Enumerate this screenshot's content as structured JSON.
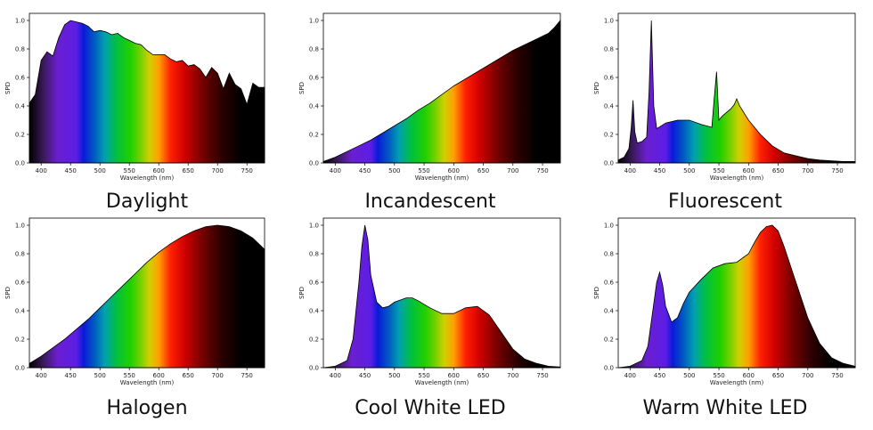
{
  "chart_data": [
    {
      "type": "area",
      "title": "Daylight",
      "xlabel": "Wavelength (nm)",
      "ylabel": "SPD",
      "xlim": [
        380,
        780
      ],
      "ylim": [
        0,
        1.05
      ],
      "xticks": [
        "400",
        "450",
        "500",
        "550",
        "600",
        "650",
        "700",
        "750"
      ],
      "yticks": [
        "0.0",
        "0.2",
        "0.4",
        "0.6",
        "0.8",
        "1.0"
      ],
      "x": [
        380,
        385,
        390,
        400,
        410,
        420,
        430,
        440,
        450,
        460,
        470,
        480,
        490,
        500,
        510,
        520,
        530,
        540,
        550,
        560,
        570,
        580,
        590,
        600,
        610,
        620,
        630,
        640,
        650,
        660,
        670,
        680,
        690,
        700,
        710,
        720,
        730,
        740,
        750,
        760,
        770,
        780
      ],
      "y": [
        0.42,
        0.45,
        0.48,
        0.72,
        0.78,
        0.75,
        0.88,
        0.97,
        1.0,
        0.99,
        0.98,
        0.96,
        0.92,
        0.93,
        0.92,
        0.9,
        0.91,
        0.88,
        0.86,
        0.84,
        0.83,
        0.79,
        0.76,
        0.76,
        0.76,
        0.73,
        0.71,
        0.72,
        0.68,
        0.69,
        0.66,
        0.6,
        0.67,
        0.63,
        0.52,
        0.63,
        0.55,
        0.52,
        0.41,
        0.56,
        0.53,
        0.53
      ]
    },
    {
      "type": "area",
      "title": "Incandescent",
      "xlabel": "Wavelength (nm)",
      "ylabel": "SPD",
      "xlim": [
        380,
        780
      ],
      "ylim": [
        0,
        1.05
      ],
      "xticks": [
        "400",
        "450",
        "500",
        "550",
        "600",
        "650",
        "700",
        "750"
      ],
      "yticks": [
        "0.0",
        "0.2",
        "0.4",
        "0.6",
        "0.8",
        "1.0"
      ],
      "x": [
        380,
        400,
        420,
        440,
        460,
        480,
        500,
        520,
        540,
        560,
        580,
        600,
        620,
        640,
        660,
        680,
        700,
        720,
        740,
        760,
        770,
        780
      ],
      "y": [
        0.01,
        0.04,
        0.08,
        0.12,
        0.16,
        0.21,
        0.26,
        0.31,
        0.37,
        0.42,
        0.48,
        0.54,
        0.59,
        0.64,
        0.69,
        0.74,
        0.79,
        0.83,
        0.87,
        0.91,
        0.95,
        1.0
      ]
    },
    {
      "type": "area",
      "title": "Fluorescent",
      "xlabel": "Wavelength (nm)",
      "ylabel": "SPD",
      "xlim": [
        380,
        780
      ],
      "ylim": [
        0,
        1.05
      ],
      "xticks": [
        "400",
        "450",
        "500",
        "550",
        "600",
        "650",
        "700",
        "750"
      ],
      "yticks": [
        "0.0",
        "0.2",
        "0.4",
        "0.6",
        "0.8",
        "1.0"
      ],
      "x": [
        380,
        390,
        398,
        402,
        405,
        408,
        412,
        420,
        428,
        432,
        436,
        440,
        445,
        460,
        480,
        500,
        520,
        538,
        542,
        546,
        550,
        556,
        570,
        576,
        580,
        585,
        600,
        620,
        640,
        660,
        680,
        700,
        720,
        740,
        760,
        780
      ],
      "y": [
        0.02,
        0.04,
        0.1,
        0.25,
        0.44,
        0.22,
        0.14,
        0.15,
        0.18,
        0.5,
        1.0,
        0.4,
        0.24,
        0.28,
        0.3,
        0.3,
        0.27,
        0.25,
        0.45,
        0.64,
        0.3,
        0.33,
        0.38,
        0.41,
        0.45,
        0.4,
        0.3,
        0.2,
        0.12,
        0.07,
        0.05,
        0.03,
        0.02,
        0.015,
        0.01,
        0.01
      ]
    },
    {
      "type": "area",
      "title": "Halogen",
      "xlabel": "Wavelength (nm)",
      "ylabel": "SPD",
      "xlim": [
        380,
        780
      ],
      "ylim": [
        0,
        1.05
      ],
      "xticks": [
        "400",
        "450",
        "500",
        "550",
        "600",
        "650",
        "700",
        "750"
      ],
      "yticks": [
        "0.0",
        "0.2",
        "0.4",
        "0.6",
        "0.8",
        "1.0"
      ],
      "x": [
        380,
        400,
        420,
        440,
        460,
        480,
        500,
        520,
        540,
        560,
        580,
        600,
        620,
        640,
        660,
        680,
        700,
        720,
        740,
        760,
        780
      ],
      "y": [
        0.03,
        0.08,
        0.14,
        0.2,
        0.27,
        0.34,
        0.42,
        0.5,
        0.58,
        0.66,
        0.74,
        0.81,
        0.87,
        0.92,
        0.96,
        0.99,
        1.0,
        0.99,
        0.96,
        0.91,
        0.83
      ]
    },
    {
      "type": "area",
      "title": "Cool White LED",
      "xlabel": "Wavelength (nm)",
      "ylabel": "SPD",
      "xlim": [
        380,
        780
      ],
      "ylim": [
        0,
        1.05
      ],
      "xticks": [
        "400",
        "450",
        "500",
        "550",
        "600",
        "650",
        "700",
        "750"
      ],
      "yticks": [
        "0.0",
        "0.2",
        "0.4",
        "0.6",
        "0.8",
        "1.0"
      ],
      "x": [
        380,
        400,
        420,
        430,
        440,
        445,
        450,
        455,
        460,
        470,
        480,
        490,
        500,
        520,
        530,
        540,
        560,
        580,
        600,
        620,
        640,
        660,
        680,
        700,
        720,
        740,
        760,
        780
      ],
      "y": [
        0.0,
        0.01,
        0.05,
        0.2,
        0.6,
        0.85,
        1.0,
        0.9,
        0.65,
        0.46,
        0.42,
        0.43,
        0.46,
        0.49,
        0.49,
        0.47,
        0.42,
        0.38,
        0.38,
        0.42,
        0.43,
        0.37,
        0.25,
        0.13,
        0.06,
        0.03,
        0.01,
        0.005
      ]
    },
    {
      "type": "area",
      "title": "Warm White LED",
      "xlabel": "Wavelength (nm)",
      "ylabel": "SPD",
      "xlim": [
        380,
        780
      ],
      "ylim": [
        0,
        1.05
      ],
      "xticks": [
        "400",
        "450",
        "500",
        "550",
        "600",
        "650",
        "700",
        "750"
      ],
      "yticks": [
        "0.0",
        "0.2",
        "0.4",
        "0.6",
        "0.8",
        "1.0"
      ],
      "x": [
        380,
        400,
        420,
        430,
        440,
        445,
        450,
        455,
        460,
        470,
        480,
        490,
        500,
        520,
        540,
        560,
        580,
        600,
        610,
        620,
        630,
        640,
        650,
        660,
        680,
        700,
        720,
        740,
        760,
        780
      ],
      "y": [
        0.0,
        0.01,
        0.05,
        0.15,
        0.45,
        0.6,
        0.67,
        0.58,
        0.43,
        0.32,
        0.35,
        0.45,
        0.53,
        0.62,
        0.7,
        0.73,
        0.74,
        0.8,
        0.88,
        0.95,
        0.99,
        1.0,
        0.96,
        0.85,
        0.6,
        0.35,
        0.17,
        0.07,
        0.03,
        0.01
      ]
    }
  ]
}
